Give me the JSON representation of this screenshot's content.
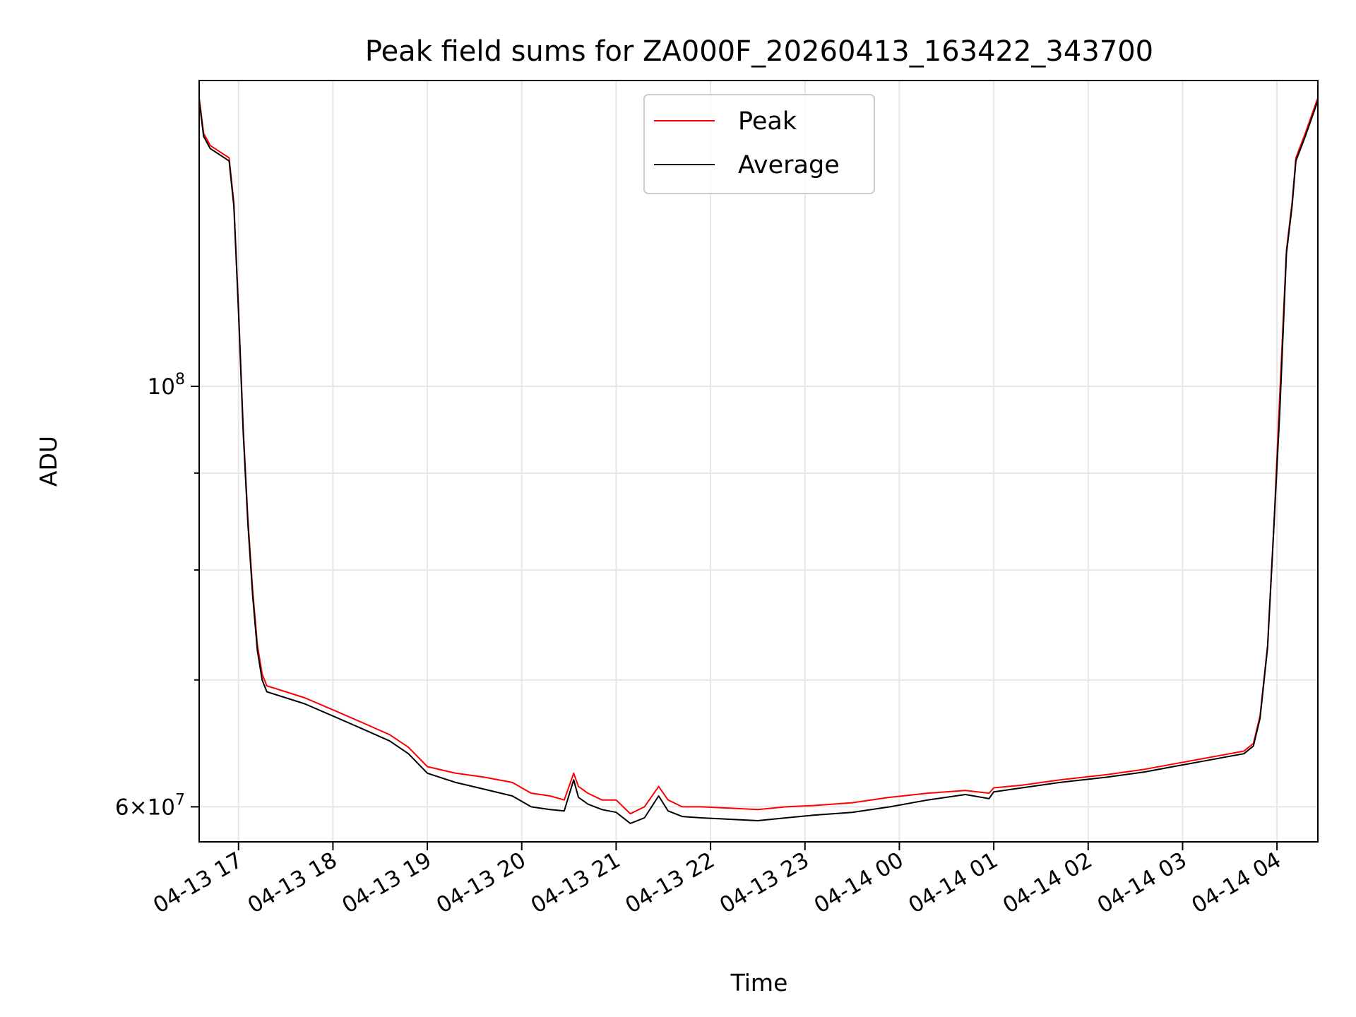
{
  "chart_data": {
    "type": "line",
    "title": "Peak field sums for ZA000F_20260413_163422_343700",
    "xlabel": "Time",
    "ylabel": "ADU",
    "yscale": "log",
    "ylim": [
      57500000,
      145000000
    ],
    "xlim_hours": [
      16.583,
      28.433
    ],
    "grid": true,
    "legend_position": "upper center",
    "x_ticks": [
      {
        "hour": 17,
        "label": "04-13 17"
      },
      {
        "hour": 18,
        "label": "04-13 18"
      },
      {
        "hour": 19,
        "label": "04-13 19"
      },
      {
        "hour": 20,
        "label": "04-13 20"
      },
      {
        "hour": 21,
        "label": "04-13 21"
      },
      {
        "hour": 22,
        "label": "04-13 22"
      },
      {
        "hour": 23,
        "label": "04-13 23"
      },
      {
        "hour": 24,
        "label": "04-14 00"
      },
      {
        "hour": 25,
        "label": "04-14 01"
      },
      {
        "hour": 26,
        "label": "04-14 02"
      },
      {
        "hour": 27,
        "label": "04-14 03"
      },
      {
        "hour": 28,
        "label": "04-14 04"
      }
    ],
    "y_major_ticks": [
      {
        "value": 100000000,
        "base": "10",
        "exp": "8",
        "mant": ""
      },
      {
        "value": 60000000,
        "base": "10",
        "exp": "7",
        "mant": "6"
      }
    ],
    "y_minor_ticks": [
      70000000,
      80000000,
      90000000
    ],
    "series": [
      {
        "name": "Peak",
        "color": "#ff0000",
        "x_hours": [
          16.583,
          16.63,
          16.7,
          16.8,
          16.9,
          16.95,
          17.0,
          17.05,
          17.1,
          17.15,
          17.2,
          17.25,
          17.3,
          17.5,
          17.7,
          18.0,
          18.3,
          18.6,
          18.8,
          19.0,
          19.3,
          19.6,
          19.9,
          20.1,
          20.3,
          20.45,
          20.55,
          20.6,
          20.7,
          20.85,
          21.0,
          21.15,
          21.3,
          21.45,
          21.55,
          21.7,
          21.9,
          22.2,
          22.5,
          22.8,
          23.1,
          23.5,
          23.9,
          24.3,
          24.7,
          24.95,
          25.0,
          25.3,
          25.7,
          26.2,
          26.6,
          26.9,
          27.2,
          27.5,
          27.65,
          27.75,
          27.82,
          27.9,
          27.97,
          28.03,
          28.1,
          28.16,
          28.2,
          28.3,
          28.433
        ],
        "values": [
          142000000,
          136000000,
          134000000,
          133000000,
          132000000,
          125000000,
          110000000,
          95000000,
          85000000,
          78000000,
          73000000,
          70500000,
          69500000,
          69000000,
          68500000,
          67500000,
          66500000,
          65500000,
          64500000,
          63000000,
          62500000,
          62200000,
          61800000,
          61000000,
          60800000,
          60500000,
          62500000,
          61500000,
          61000000,
          60500000,
          60500000,
          59500000,
          60000000,
          61500000,
          60500000,
          60000000,
          60000000,
          59900000,
          59800000,
          60000000,
          60100000,
          60300000,
          60700000,
          61000000,
          61200000,
          61000000,
          61400000,
          61600000,
          62000000,
          62400000,
          62800000,
          63200000,
          63600000,
          64000000,
          64200000,
          64800000,
          67000000,
          73000000,
          85000000,
          99000000,
          118000000,
          125000000,
          132000000,
          136000000,
          142000000
        ]
      },
      {
        "name": "Average",
        "color": "#000000",
        "x_hours": [
          16.583,
          16.63,
          16.7,
          16.8,
          16.9,
          16.95,
          17.0,
          17.05,
          17.1,
          17.15,
          17.2,
          17.25,
          17.3,
          17.5,
          17.7,
          18.0,
          18.3,
          18.6,
          18.8,
          19.0,
          19.3,
          19.6,
          19.9,
          20.1,
          20.3,
          20.45,
          20.55,
          20.6,
          20.7,
          20.85,
          21.0,
          21.15,
          21.3,
          21.45,
          21.55,
          21.7,
          21.9,
          22.2,
          22.5,
          22.8,
          23.1,
          23.5,
          23.9,
          24.3,
          24.7,
          24.95,
          25.0,
          25.3,
          25.7,
          26.2,
          26.6,
          26.9,
          27.2,
          27.5,
          27.65,
          27.75,
          27.82,
          27.9,
          27.97,
          28.03,
          28.1,
          28.16,
          28.2,
          28.3,
          28.433
        ],
        "values": [
          141500000,
          135500000,
          133500000,
          132500000,
          131500000,
          124500000,
          109500000,
          94500000,
          84500000,
          77500000,
          72500000,
          70000000,
          69000000,
          68500000,
          68000000,
          67000000,
          66000000,
          65000000,
          64000000,
          62500000,
          61800000,
          61300000,
          60800000,
          60000000,
          59800000,
          59700000,
          62000000,
          60700000,
          60200000,
          59800000,
          59600000,
          58800000,
          59200000,
          60800000,
          59700000,
          59300000,
          59200000,
          59100000,
          59000000,
          59200000,
          59400000,
          59600000,
          60000000,
          60500000,
          60900000,
          60600000,
          61100000,
          61400000,
          61800000,
          62200000,
          62600000,
          63000000,
          63400000,
          63800000,
          64000000,
          64600000,
          66800000,
          72800000,
          84800000,
          97000000,
          117500000,
          124500000,
          131500000,
          135500000,
          141500000
        ]
      }
    ]
  }
}
